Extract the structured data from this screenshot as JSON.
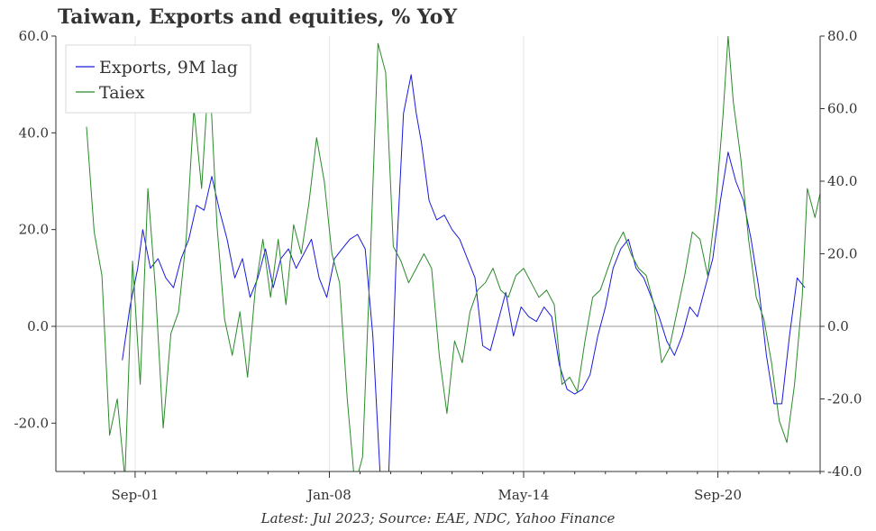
{
  "title": "Taiwan, Exports and equities, % YoY",
  "footnote": "Latest: Jul 2023; Source: EAE, NDC, Yahoo Finance",
  "colors": {
    "exports": "#1a1adc",
    "taiex": "#2a8a2a",
    "zero_line": "#999999",
    "grid": "#e6e6e6",
    "axis": "#333333"
  },
  "chart_data": {
    "type": "line",
    "title": "Taiwan, Exports and equities, % YoY",
    "x_tick_labels": [
      "Sep-01",
      "Jan-08",
      "May-14",
      "Sep-20"
    ],
    "x_tick_dates": [
      "2001-09",
      "2008-01",
      "2014-05",
      "2020-09"
    ],
    "x_range": [
      "1999-02",
      "2024-01"
    ],
    "y_left": {
      "range": [
        -30,
        60
      ],
      "ticks": [
        "-20.0",
        "0.0",
        "20.0",
        "40.0",
        "60.0"
      ],
      "tick_values": [
        -20,
        0,
        20,
        40,
        60
      ]
    },
    "y_right": {
      "range": [
        -40,
        80
      ],
      "ticks": [
        "-40.0",
        "-20.0",
        "0.0",
        "20.0",
        "40.0",
        "60.0",
        "80.0"
      ],
      "tick_values": [
        -40,
        -20,
        0,
        20,
        40,
        60,
        80
      ]
    },
    "grid": "vertical",
    "legend_position": "top-left",
    "series": [
      {
        "name": "Exports, 9M lag",
        "axis": "left",
        "points": [
          [
            "2001-04",
            -7
          ],
          [
            "2001-07",
            4
          ],
          [
            "2001-10",
            12
          ],
          [
            "2001-12",
            20
          ],
          [
            "2002-03",
            12
          ],
          [
            "2002-06",
            14
          ],
          [
            "2002-09",
            10
          ],
          [
            "2002-12",
            8
          ],
          [
            "2003-03",
            14
          ],
          [
            "2003-06",
            18
          ],
          [
            "2003-09",
            25
          ],
          [
            "2003-12",
            24
          ],
          [
            "2004-03",
            31
          ],
          [
            "2004-06",
            24
          ],
          [
            "2004-09",
            18
          ],
          [
            "2004-12",
            10
          ],
          [
            "2005-03",
            14
          ],
          [
            "2005-06",
            6
          ],
          [
            "2005-09",
            10
          ],
          [
            "2005-12",
            16
          ],
          [
            "2006-03",
            8
          ],
          [
            "2006-06",
            14
          ],
          [
            "2006-09",
            16
          ],
          [
            "2006-12",
            12
          ],
          [
            "2007-03",
            15
          ],
          [
            "2007-06",
            18
          ],
          [
            "2007-09",
            10
          ],
          [
            "2007-12",
            6
          ],
          [
            "2008-03",
            14
          ],
          [
            "2008-06",
            16
          ],
          [
            "2008-09",
            18
          ],
          [
            "2008-12",
            19
          ],
          [
            "2009-03",
            16
          ],
          [
            "2009-06",
            -2
          ],
          [
            "2009-09",
            -32
          ],
          [
            "2009-12",
            -34
          ],
          [
            "2010-03",
            12
          ],
          [
            "2010-06",
            44
          ],
          [
            "2010-09",
            52
          ],
          [
            "2010-11",
            44
          ],
          [
            "2011-01",
            38
          ],
          [
            "2011-04",
            26
          ],
          [
            "2011-07",
            22
          ],
          [
            "2011-10",
            23
          ],
          [
            "2012-01",
            20
          ],
          [
            "2012-04",
            18
          ],
          [
            "2012-07",
            14
          ],
          [
            "2012-10",
            10
          ],
          [
            "2013-01",
            -4
          ],
          [
            "2013-04",
            -5
          ],
          [
            "2013-07",
            1
          ],
          [
            "2013-10",
            7
          ],
          [
            "2014-01",
            -2
          ],
          [
            "2014-04",
            4
          ],
          [
            "2014-07",
            2
          ],
          [
            "2014-10",
            1
          ],
          [
            "2015-01",
            4
          ],
          [
            "2015-04",
            2
          ],
          [
            "2015-07",
            -8
          ],
          [
            "2015-10",
            -13
          ],
          [
            "2016-01",
            -14
          ],
          [
            "2016-04",
            -13
          ],
          [
            "2016-07",
            -10
          ],
          [
            "2016-10",
            -2
          ],
          [
            "2017-01",
            4
          ],
          [
            "2017-04",
            12
          ],
          [
            "2017-07",
            16
          ],
          [
            "2017-10",
            18
          ],
          [
            "2018-01",
            12
          ],
          [
            "2018-04",
            10
          ],
          [
            "2018-07",
            6
          ],
          [
            "2018-10",
            2
          ],
          [
            "2019-01",
            -3
          ],
          [
            "2019-04",
            -6
          ],
          [
            "2019-07",
            -2
          ],
          [
            "2019-10",
            4
          ],
          [
            "2020-01",
            2
          ],
          [
            "2020-04",
            8
          ],
          [
            "2020-07",
            14
          ],
          [
            "2020-10",
            26
          ],
          [
            "2021-01",
            36
          ],
          [
            "2021-04",
            30
          ],
          [
            "2021-07",
            26
          ],
          [
            "2021-10",
            18
          ],
          [
            "2022-01",
            8
          ],
          [
            "2022-04",
            -6
          ],
          [
            "2022-07",
            -16
          ],
          [
            "2022-10",
            -16
          ],
          [
            "2023-01",
            -2
          ],
          [
            "2023-04",
            10
          ],
          [
            "2023-07",
            8
          ]
        ]
      },
      {
        "name": "Taiex",
        "axis": "right",
        "points": [
          [
            "2000-02",
            55
          ],
          [
            "2000-05",
            26
          ],
          [
            "2000-08",
            14
          ],
          [
            "2000-11",
            -30
          ],
          [
            "2001-02",
            -20
          ],
          [
            "2001-05",
            -42
          ],
          [
            "2001-08",
            18
          ],
          [
            "2001-11",
            -16
          ],
          [
            "2002-02",
            38
          ],
          [
            "2002-05",
            10
          ],
          [
            "2002-08",
            -28
          ],
          [
            "2002-11",
            -2
          ],
          [
            "2003-02",
            4
          ],
          [
            "2003-05",
            24
          ],
          [
            "2003-08",
            60
          ],
          [
            "2003-11",
            38
          ],
          [
            "2004-02",
            72
          ],
          [
            "2004-05",
            28
          ],
          [
            "2004-08",
            2
          ],
          [
            "2004-11",
            -8
          ],
          [
            "2005-02",
            4
          ],
          [
            "2005-05",
            -14
          ],
          [
            "2005-08",
            10
          ],
          [
            "2005-11",
            24
          ],
          [
            "2006-02",
            8
          ],
          [
            "2006-05",
            24
          ],
          [
            "2006-08",
            6
          ],
          [
            "2006-11",
            28
          ],
          [
            "2007-02",
            20
          ],
          [
            "2007-05",
            34
          ],
          [
            "2007-08",
            52
          ],
          [
            "2007-11",
            40
          ],
          [
            "2008-02",
            20
          ],
          [
            "2008-05",
            12
          ],
          [
            "2008-08",
            -20
          ],
          [
            "2008-11",
            -44
          ],
          [
            "2009-02",
            -36
          ],
          [
            "2009-05",
            18
          ],
          [
            "2009-08",
            78
          ],
          [
            "2009-11",
            70
          ],
          [
            "2010-02",
            22
          ],
          [
            "2010-05",
            18
          ],
          [
            "2010-08",
            12
          ],
          [
            "2010-11",
            16
          ],
          [
            "2011-02",
            20
          ],
          [
            "2011-05",
            16
          ],
          [
            "2011-08",
            -8
          ],
          [
            "2011-11",
            -24
          ],
          [
            "2012-02",
            -4
          ],
          [
            "2012-05",
            -10
          ],
          [
            "2012-08",
            4
          ],
          [
            "2012-11",
            10
          ],
          [
            "2013-02",
            12
          ],
          [
            "2013-05",
            16
          ],
          [
            "2013-08",
            10
          ],
          [
            "2013-11",
            8
          ],
          [
            "2014-02",
            14
          ],
          [
            "2014-05",
            16
          ],
          [
            "2014-08",
            12
          ],
          [
            "2014-11",
            8
          ],
          [
            "2015-02",
            10
          ],
          [
            "2015-05",
            6
          ],
          [
            "2015-08",
            -16
          ],
          [
            "2015-11",
            -14
          ],
          [
            "2016-02",
            -18
          ],
          [
            "2016-05",
            -4
          ],
          [
            "2016-08",
            8
          ],
          [
            "2016-11",
            10
          ],
          [
            "2017-02",
            16
          ],
          [
            "2017-05",
            22
          ],
          [
            "2017-08",
            26
          ],
          [
            "2017-11",
            20
          ],
          [
            "2018-02",
            16
          ],
          [
            "2018-05",
            14
          ],
          [
            "2018-08",
            6
          ],
          [
            "2018-11",
            -10
          ],
          [
            "2019-02",
            -6
          ],
          [
            "2019-05",
            4
          ],
          [
            "2019-08",
            14
          ],
          [
            "2019-11",
            26
          ],
          [
            "2020-02",
            24
          ],
          [
            "2020-05",
            14
          ],
          [
            "2020-08",
            32
          ],
          [
            "2020-11",
            58
          ],
          [
            "2021-01",
            80
          ],
          [
            "2021-03",
            62
          ],
          [
            "2021-06",
            46
          ],
          [
            "2021-09",
            24
          ],
          [
            "2021-12",
            8
          ],
          [
            "2022-03",
            2
          ],
          [
            "2022-06",
            -10
          ],
          [
            "2022-09",
            -26
          ],
          [
            "2022-12",
            -32
          ],
          [
            "2023-03",
            -16
          ],
          [
            "2023-06",
            8
          ],
          [
            "2023-08",
            38
          ],
          [
            "2023-11",
            30
          ],
          [
            "2024-02",
            40
          ],
          [
            "2024-04",
            43
          ],
          [
            "2024-05",
            40
          ]
        ]
      }
    ]
  }
}
